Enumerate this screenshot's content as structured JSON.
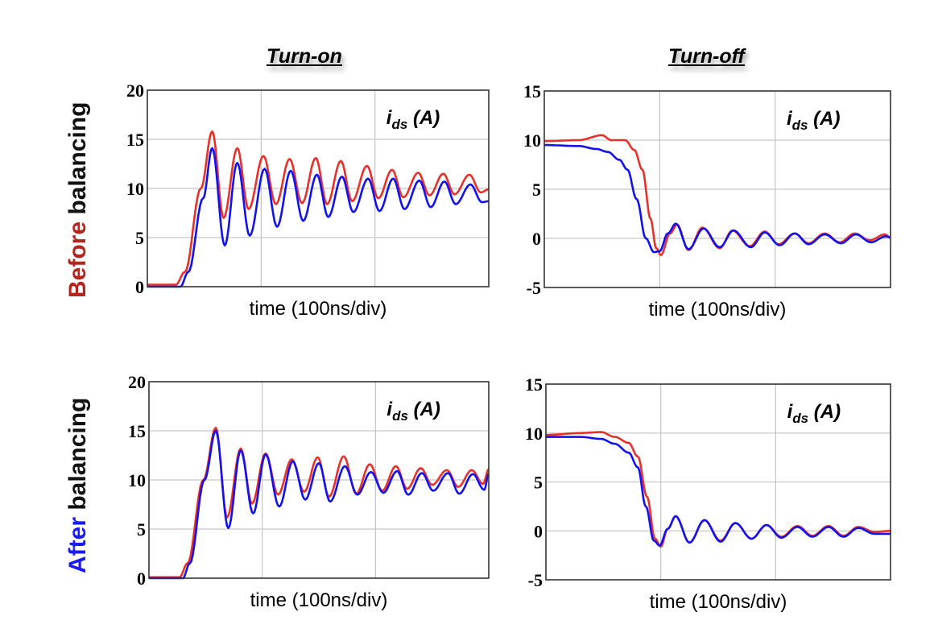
{
  "column_titles": [
    "Turn-on",
    "Turn-off"
  ],
  "row_labels": [
    {
      "highlight": "Before",
      "rest": " balancing",
      "highlight_color": "#b3261e"
    },
    {
      "highlight": "After",
      "rest": " balancing",
      "highlight_color": "#1b1bf0"
    }
  ],
  "colors": {
    "red_trace": "#e8302a",
    "blue_trace": "#1212ee",
    "grid": "#c8c8c8",
    "frame": "#333333"
  },
  "chart_data": [
    {
      "id": "before-turn-on",
      "type": "line",
      "title": "Turn-on",
      "row": "Before balancing",
      "quantity_main": "i",
      "quantity_sub": "ds",
      "quantity_unit": " (A)",
      "xlabel": "time (100ns/div)",
      "xlim": [
        0,
        3
      ],
      "ylim": [
        0,
        20
      ],
      "yticks": [
        0,
        5,
        10,
        15,
        20
      ],
      "grid": true,
      "series": [
        {
          "name": "red",
          "color": "#e8302a",
          "points": [
            [
              0,
              0.2
            ],
            [
              0.25,
              0.2
            ],
            [
              0.33,
              1.5
            ],
            [
              0.47,
              10
            ],
            [
              0.57,
              15.8
            ],
            [
              0.67,
              7.0
            ],
            [
              0.79,
              14.1
            ],
            [
              0.89,
              7.9
            ],
            [
              1.02,
              13.3
            ],
            [
              1.13,
              8.4
            ],
            [
              1.25,
              13.0
            ],
            [
              1.36,
              8.5
            ],
            [
              1.48,
              13.1
            ],
            [
              1.58,
              8.4
            ],
            [
              1.7,
              12.8
            ],
            [
              1.8,
              8.7
            ],
            [
              1.93,
              12.3
            ],
            [
              2.03,
              9.0
            ],
            [
              2.15,
              11.9
            ],
            [
              2.25,
              9.1
            ],
            [
              2.38,
              11.6
            ],
            [
              2.48,
              9.3
            ],
            [
              2.6,
              11.5
            ],
            [
              2.7,
              9.4
            ],
            [
              2.83,
              11.4
            ],
            [
              2.93,
              9.6
            ],
            [
              3.0,
              9.9
            ]
          ]
        },
        {
          "name": "blue",
          "color": "#1212ee",
          "points": [
            [
              0,
              0.0
            ],
            [
              0.29,
              0.0
            ],
            [
              0.36,
              1.5
            ],
            [
              0.49,
              9
            ],
            [
              0.57,
              14.1
            ],
            [
              0.68,
              4.2
            ],
            [
              0.79,
              12.6
            ],
            [
              0.9,
              5.2
            ],
            [
              1.03,
              12.0
            ],
            [
              1.14,
              6.1
            ],
            [
              1.26,
              11.8
            ],
            [
              1.37,
              6.7
            ],
            [
              1.49,
              11.4
            ],
            [
              1.59,
              7.1
            ],
            [
              1.71,
              11.2
            ],
            [
              1.81,
              7.6
            ],
            [
              1.94,
              11.0
            ],
            [
              2.04,
              7.7
            ],
            [
              2.16,
              11.0
            ],
            [
              2.26,
              7.9
            ],
            [
              2.39,
              10.8
            ],
            [
              2.49,
              8.1
            ],
            [
              2.61,
              10.7
            ],
            [
              2.71,
              8.4
            ],
            [
              2.84,
              10.4
            ],
            [
              2.94,
              8.6
            ],
            [
              3.0,
              8.7
            ]
          ]
        }
      ]
    },
    {
      "id": "before-turn-off",
      "type": "line",
      "title": "Turn-off",
      "row": "Before balancing",
      "quantity_main": "i",
      "quantity_sub": "ds",
      "quantity_unit": " (A)",
      "xlabel": "time (100ns/div)",
      "xlim": [
        0,
        3
      ],
      "ylim": [
        -5,
        15
      ],
      "yticks": [
        -5,
        0,
        5,
        10,
        15
      ],
      "grid": true,
      "series": [
        {
          "name": "red",
          "color": "#e8302a",
          "points": [
            [
              0,
              9.9
            ],
            [
              0.3,
              10.0
            ],
            [
              0.5,
              10.5
            ],
            [
              0.58,
              10.0
            ],
            [
              0.7,
              10.0
            ],
            [
              0.78,
              9.0
            ],
            [
              0.85,
              7.0
            ],
            [
              0.92,
              2.0
            ],
            [
              0.97,
              -1.0
            ],
            [
              1.01,
              -1.7
            ],
            [
              1.09,
              0.5
            ],
            [
              1.15,
              1.4
            ],
            [
              1.25,
              -1.2
            ],
            [
              1.37,
              1.1
            ],
            [
              1.52,
              -1.0
            ],
            [
              1.63,
              0.8
            ],
            [
              1.78,
              -0.8
            ],
            [
              1.91,
              0.7
            ],
            [
              2.03,
              -0.6
            ],
            [
              2.17,
              0.5
            ],
            [
              2.29,
              -0.5
            ],
            [
              2.43,
              0.5
            ],
            [
              2.56,
              -0.4
            ],
            [
              2.69,
              0.5
            ],
            [
              2.82,
              -0.2
            ],
            [
              2.95,
              0.4
            ],
            [
              3.0,
              0.1
            ]
          ]
        },
        {
          "name": "blue",
          "color": "#1212ee",
          "points": [
            [
              0,
              9.5
            ],
            [
              0.3,
              9.4
            ],
            [
              0.45,
              9.1
            ],
            [
              0.55,
              8.8
            ],
            [
              0.65,
              8.0
            ],
            [
              0.72,
              7.0
            ],
            [
              0.8,
              4.0
            ],
            [
              0.88,
              0.0
            ],
            [
              0.95,
              -1.4
            ],
            [
              1.0,
              -1.3
            ],
            [
              1.07,
              0.5
            ],
            [
              1.14,
              1.5
            ],
            [
              1.25,
              -1.1
            ],
            [
              1.38,
              1.0
            ],
            [
              1.52,
              -0.9
            ],
            [
              1.64,
              0.8
            ],
            [
              1.79,
              -0.9
            ],
            [
              1.91,
              0.6
            ],
            [
              2.04,
              -0.7
            ],
            [
              2.17,
              0.5
            ],
            [
              2.29,
              -0.6
            ],
            [
              2.43,
              0.4
            ],
            [
              2.57,
              -0.5
            ],
            [
              2.7,
              0.4
            ],
            [
              2.83,
              -0.4
            ],
            [
              2.96,
              0.2
            ],
            [
              3.0,
              0.1
            ]
          ]
        }
      ]
    },
    {
      "id": "after-turn-on",
      "type": "line",
      "title": "Turn-on",
      "row": "After balancing",
      "quantity_main": "i",
      "quantity_sub": "ds",
      "quantity_unit": " (A)",
      "xlabel": "time (100ns/div)",
      "xlim": [
        0,
        3
      ],
      "ylim": [
        0,
        20
      ],
      "yticks": [
        0,
        5,
        10,
        15,
        20
      ],
      "grid": true,
      "series": [
        {
          "name": "red",
          "color": "#e8302a",
          "points": [
            [
              0,
              0.1
            ],
            [
              0.27,
              0.1
            ],
            [
              0.34,
              1.5
            ],
            [
              0.48,
              10
            ],
            [
              0.59,
              15.3
            ],
            [
              0.69,
              6.2
            ],
            [
              0.81,
              13.2
            ],
            [
              0.91,
              7.6
            ],
            [
              1.03,
              12.7
            ],
            [
              1.14,
              8.5
            ],
            [
              1.26,
              12.1
            ],
            [
              1.37,
              8.8
            ],
            [
              1.49,
              12.3
            ],
            [
              1.59,
              8.3
            ],
            [
              1.72,
              12.4
            ],
            [
              1.83,
              8.6
            ],
            [
              1.95,
              11.6
            ],
            [
              2.06,
              8.9
            ],
            [
              2.18,
              11.4
            ],
            [
              2.28,
              9.1
            ],
            [
              2.4,
              11.2
            ],
            [
              2.5,
              9.5
            ],
            [
              2.63,
              11.0
            ],
            [
              2.73,
              9.3
            ],
            [
              2.85,
              11.0
            ],
            [
              2.95,
              9.6
            ],
            [
              3.0,
              11.1
            ]
          ]
        },
        {
          "name": "blue",
          "color": "#1212ee",
          "points": [
            [
              0,
              0.0
            ],
            [
              0.3,
              0.0
            ],
            [
              0.36,
              1.5
            ],
            [
              0.49,
              10
            ],
            [
              0.59,
              15.0
            ],
            [
              0.7,
              5.1
            ],
            [
              0.81,
              13.0
            ],
            [
              0.92,
              6.6
            ],
            [
              1.03,
              12.6
            ],
            [
              1.15,
              7.3
            ],
            [
              1.27,
              11.9
            ],
            [
              1.38,
              8.0
            ],
            [
              1.5,
              11.7
            ],
            [
              1.6,
              7.8
            ],
            [
              1.73,
              11.4
            ],
            [
              1.84,
              8.5
            ],
            [
              1.96,
              10.8
            ],
            [
              2.07,
              8.7
            ],
            [
              2.19,
              10.9
            ],
            [
              2.29,
              8.5
            ],
            [
              2.41,
              10.7
            ],
            [
              2.51,
              8.9
            ],
            [
              2.64,
              10.7
            ],
            [
              2.74,
              8.6
            ],
            [
              2.86,
              10.6
            ],
            [
              2.96,
              9.0
            ],
            [
              3.0,
              10.6
            ]
          ]
        }
      ]
    },
    {
      "id": "after-turn-off",
      "type": "line",
      "title": "Turn-off",
      "row": "After balancing",
      "quantity_main": "i",
      "quantity_sub": "ds",
      "quantity_unit": " (A)",
      "xlabel": "time (100ns/div)",
      "xlim": [
        0,
        3
      ],
      "ylim": [
        -5,
        15
      ],
      "yticks": [
        -5,
        0,
        5,
        10,
        15
      ],
      "grid": true,
      "series": [
        {
          "name": "red",
          "color": "#e8302a",
          "points": [
            [
              0,
              9.8
            ],
            [
              0.3,
              10.0
            ],
            [
              0.48,
              10.1
            ],
            [
              0.6,
              9.6
            ],
            [
              0.72,
              9.0
            ],
            [
              0.8,
              7.6
            ],
            [
              0.88,
              3.5
            ],
            [
              0.95,
              -0.8
            ],
            [
              1.0,
              -1.6
            ],
            [
              1.06,
              0.2
            ],
            [
              1.13,
              1.5
            ],
            [
              1.25,
              -1.2
            ],
            [
              1.38,
              1.1
            ],
            [
              1.52,
              -1.0
            ],
            [
              1.65,
              0.8
            ],
            [
              1.79,
              -0.8
            ],
            [
              1.92,
              0.6
            ],
            [
              2.05,
              -0.6
            ],
            [
              2.19,
              0.5
            ],
            [
              2.32,
              -0.5
            ],
            [
              2.46,
              0.5
            ],
            [
              2.59,
              -0.5
            ],
            [
              2.72,
              0.4
            ],
            [
              2.86,
              -0.1
            ],
            [
              3.0,
              0.0
            ]
          ]
        },
        {
          "name": "blue",
          "color": "#1212ee",
          "points": [
            [
              0,
              9.6
            ],
            [
              0.3,
              9.6
            ],
            [
              0.48,
              9.4
            ],
            [
              0.6,
              8.9
            ],
            [
              0.72,
              8.0
            ],
            [
              0.8,
              6.5
            ],
            [
              0.87,
              2.5
            ],
            [
              0.94,
              -1.0
            ],
            [
              0.99,
              -1.5
            ],
            [
              1.06,
              0.2
            ],
            [
              1.13,
              1.5
            ],
            [
              1.25,
              -1.2
            ],
            [
              1.38,
              1.1
            ],
            [
              1.52,
              -1.1
            ],
            [
              1.65,
              0.8
            ],
            [
              1.79,
              -0.8
            ],
            [
              1.92,
              0.6
            ],
            [
              2.05,
              -0.7
            ],
            [
              2.19,
              0.4
            ],
            [
              2.32,
              -0.6
            ],
            [
              2.46,
              0.4
            ],
            [
              2.59,
              -0.6
            ],
            [
              2.72,
              0.3
            ],
            [
              2.86,
              -0.3
            ],
            [
              3.0,
              -0.3
            ]
          ]
        }
      ]
    }
  ]
}
